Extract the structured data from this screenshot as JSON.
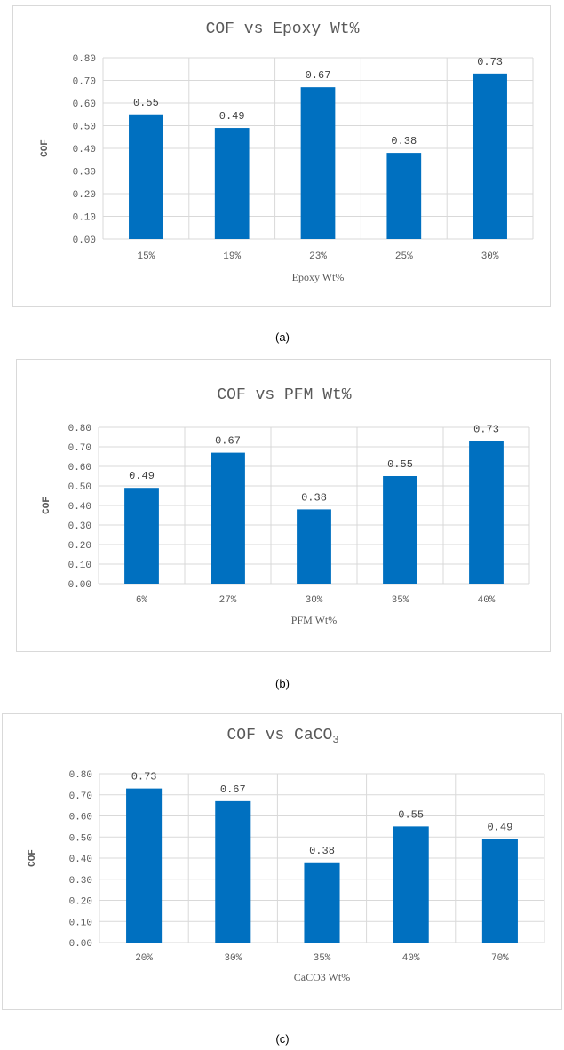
{
  "chart_data": [
    {
      "type": "bar",
      "title": "COF vs Epoxy Wt%",
      "xlabel": "Epoxy Wt%",
      "ylabel": "COF",
      "ylim": [
        0,
        0.8
      ],
      "yticks": [
        "0.00",
        "0.10",
        "0.20",
        "0.30",
        "0.40",
        "0.50",
        "0.60",
        "0.70",
        "0.80"
      ],
      "categories": [
        "15%",
        "19%",
        "23%",
        "25%",
        "30%"
      ],
      "values": [
        0.55,
        0.49,
        0.67,
        0.38,
        0.73
      ],
      "data_labels": [
        "0.55",
        "0.49",
        "0.67",
        "0.38",
        "0.73"
      ],
      "bar_color": "#0070c0",
      "grid": true,
      "legend": "none",
      "caption": "(a)"
    },
    {
      "type": "bar",
      "title": "COF vs PFM Wt%",
      "xlabel": "PFM Wt%",
      "ylabel": "COF",
      "ylim": [
        0,
        0.8
      ],
      "yticks": [
        "0.00",
        "0.10",
        "0.20",
        "0.30",
        "0.40",
        "0.50",
        "0.60",
        "0.70",
        "0.80"
      ],
      "categories": [
        "6%",
        "27%",
        "30%",
        "35%",
        "40%"
      ],
      "values": [
        0.49,
        0.67,
        0.38,
        0.55,
        0.73
      ],
      "data_labels": [
        "0.49",
        "0.67",
        "0.38",
        "0.55",
        "0.73"
      ],
      "bar_color": "#0070c0",
      "grid": true,
      "legend": "none",
      "caption": "(b)"
    },
    {
      "type": "bar",
      "title": "COF vs CaCO",
      "title_subscript": "3",
      "xlabel": "CaCO3 Wt%",
      "ylabel": "COF",
      "ylim": [
        0,
        0.8
      ],
      "yticks": [
        "0.00",
        "0.10",
        "0.20",
        "0.30",
        "0.40",
        "0.50",
        "0.60",
        "0.70",
        "0.80"
      ],
      "categories": [
        "20%",
        "30%",
        "35%",
        "40%",
        "70%"
      ],
      "values": [
        0.73,
        0.67,
        0.38,
        0.55,
        0.49
      ],
      "data_labels": [
        "0.73",
        "0.67",
        "0.38",
        "0.55",
        "0.49"
      ],
      "bar_color": "#0070c0",
      "grid": true,
      "legend": "none",
      "caption": "(c)"
    }
  ]
}
